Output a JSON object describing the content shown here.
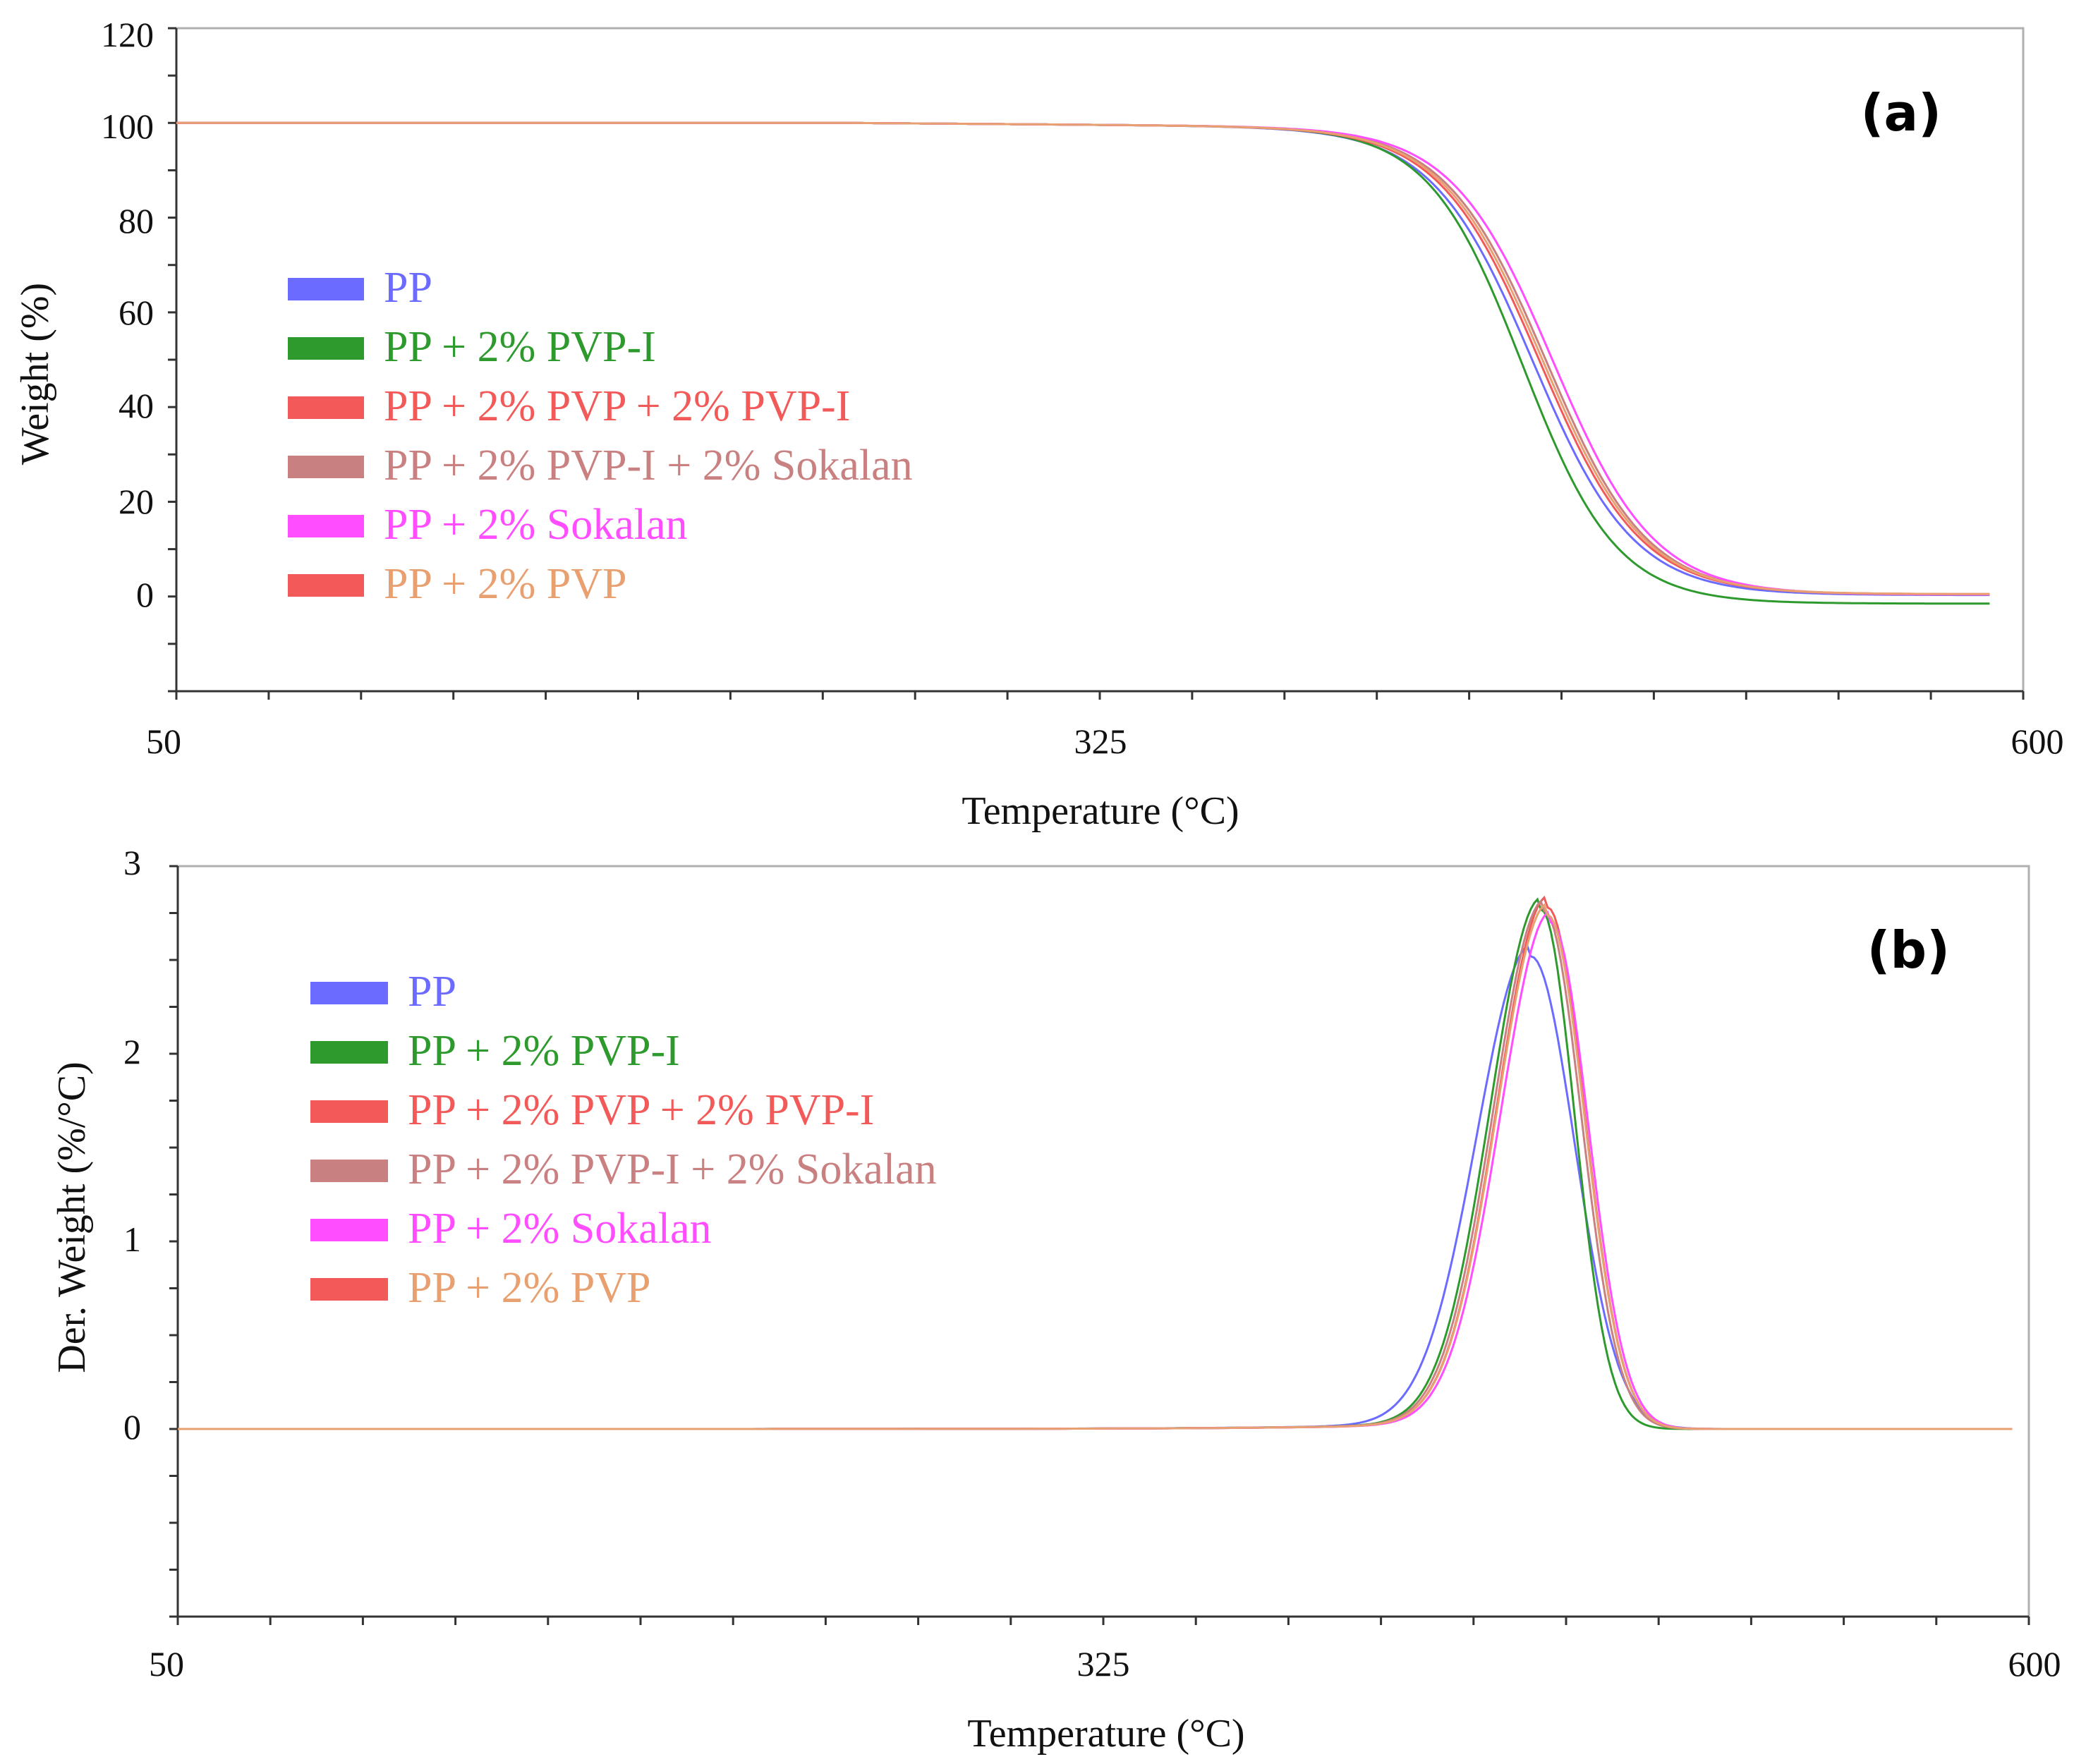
{
  "chart_data": [
    {
      "type": "line",
      "panel_label": "(a)",
      "xlabel": "Temperature (°C)",
      "ylabel": "Weight (%)",
      "xlim": [
        50,
        600
      ],
      "ylim": [
        -20,
        120
      ],
      "x_ticks": [
        50,
        325,
        600
      ],
      "y_ticks": [
        0,
        20,
        40,
        60,
        80,
        100,
        120
      ],
      "grid": false,
      "legend_position": "left",
      "series": [
        {
          "name": "PP",
          "color": "#6b6bff",
          "tmid": 454,
          "width": 15,
          "end": 0.3
        },
        {
          "name": "PP + 2% PVP-I",
          "color": "#2e9a2e",
          "tmid": 451,
          "width": 14,
          "end": -1.5
        },
        {
          "name": "PP + 2% PVP + 2% PVP-I",
          "color": "#f25a5a",
          "tmid": 456,
          "width": 15,
          "end": 0.5
        },
        {
          "name": "PP + 2% PVP-I + 2% Sokalan",
          "color": "#c98080",
          "tmid": 458,
          "width": 15,
          "end": 0.4
        },
        {
          "name": "PP + 2% Sokalan",
          "color": "#ff4dff",
          "tmid": 460,
          "width": 15,
          "end": 0.4
        },
        {
          "name": "PP + 2% PVP",
          "color": "#e8a070",
          "tmid": 457,
          "width": 15,
          "end": 0.5
        }
      ]
    },
    {
      "type": "line",
      "panel_label": "(b)",
      "xlabel": "Temperature (°C)",
      "ylabel": "Der. Weight (%/°C)",
      "xlim": [
        50,
        600
      ],
      "ylim": [
        -1,
        3
      ],
      "x_ticks": [
        50,
        325,
        600
      ],
      "y_ticks": [
        0,
        1,
        2,
        3
      ],
      "grid": false,
      "legend_position": "left",
      "series": [
        {
          "name": "PP",
          "color": "#6b6bff",
          "peak_x": 452,
          "peak_y": 2.52,
          "sigma_left": 16,
          "sigma_right": 13
        },
        {
          "name": "PP + 2% PVP-I",
          "color": "#2e9a2e",
          "peak_x": 455,
          "peak_y": 2.77,
          "sigma_left": 15,
          "sigma_right": 10
        },
        {
          "name": "PP + 2% PVP + 2% PVP-I",
          "color": "#f25a5a",
          "peak_x": 457,
          "peak_y": 2.78,
          "sigma_left": 15,
          "sigma_right": 11
        },
        {
          "name": "PP + 2% PVP-I + 2% Sokalan",
          "color": "#c98080",
          "peak_x": 456,
          "peak_y": 2.76,
          "sigma_left": 15,
          "sigma_right": 11
        },
        {
          "name": "PP + 2% Sokalan",
          "color": "#ff4dff",
          "peak_x": 458,
          "peak_y": 2.7,
          "sigma_left": 15,
          "sigma_right": 11
        },
        {
          "name": "PP + 2% PVP",
          "color": "#e8a070",
          "peak_x": 457,
          "peak_y": 2.74,
          "sigma_left": 15,
          "sigma_right": 11
        }
      ]
    }
  ]
}
